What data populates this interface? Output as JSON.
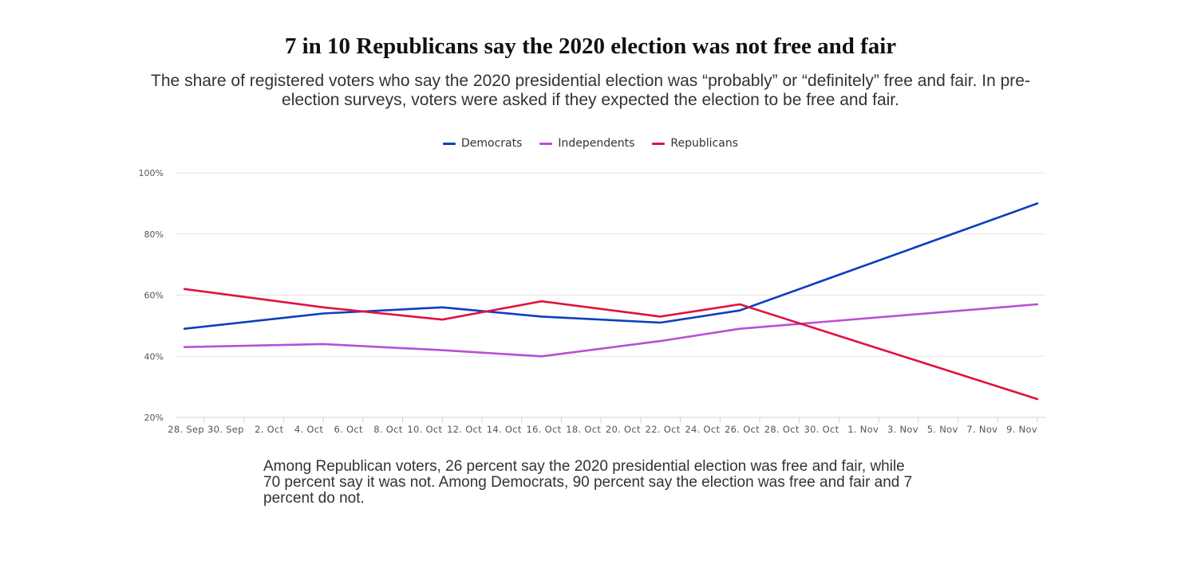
{
  "title": "7 in 10 Republicans say the 2020 election was not free and fair",
  "subtitle": "The share of registered voters who say the 2020 presidential election was “probably” or “definitely” free and fair. In pre-election surveys, voters were asked if they expected the election to be free and fair.",
  "caption": "Among Republican voters, 26 percent say the 2020 presidential election was free and fair, while 70 percent say it was not. Among Democrats, 90 percent say the election was free and fair and 7 percent do not.",
  "chart_data": {
    "type": "line",
    "title": "7 in 10 Republicans say the 2020 election was not free and fair",
    "xlabel": "",
    "ylabel": "",
    "grid": true,
    "legend_position": "top-center",
    "ylim": [
      20,
      100
    ],
    "y_ticks": [
      "20%",
      "40%",
      "60%",
      "80%",
      "100%"
    ],
    "y_tick_values": [
      20,
      40,
      60,
      80,
      100
    ],
    "x_ticks": [
      "28. Sep",
      "30. Sep",
      "2. Oct",
      "4. Oct",
      "6. Oct",
      "8. Oct",
      "10. Oct",
      "12. Oct",
      "14. Oct",
      "16. Oct",
      "18. Oct",
      "20. Oct",
      "22. Oct",
      "24. Oct",
      "26. Oct",
      "28. Oct",
      "30. Oct",
      "1. Nov",
      "3. Nov",
      "5. Nov",
      "7. Nov",
      "9. Nov"
    ],
    "x_tick_dates": [
      "2020-09-28",
      "2020-09-30",
      "2020-10-02",
      "2020-10-04",
      "2020-10-06",
      "2020-10-08",
      "2020-10-10",
      "2020-10-12",
      "2020-10-14",
      "2020-10-16",
      "2020-10-18",
      "2020-10-20",
      "2020-10-22",
      "2020-10-24",
      "2020-10-26",
      "2020-10-28",
      "2020-10-30",
      "2020-11-01",
      "2020-11-03",
      "2020-11-05",
      "2020-11-07",
      "2020-11-09"
    ],
    "series": [
      {
        "name": "Democrats",
        "color": "#0b3fbf",
        "points": [
          {
            "x": "2020-09-27",
            "y": 49
          },
          {
            "x": "2020-10-04",
            "y": 54
          },
          {
            "x": "2020-10-10",
            "y": 56
          },
          {
            "x": "2020-10-15",
            "y": 53
          },
          {
            "x": "2020-10-21",
            "y": 51
          },
          {
            "x": "2020-10-25",
            "y": 55
          },
          {
            "x": "2020-11-09",
            "y": 90
          }
        ]
      },
      {
        "name": "Independents",
        "color": "#b84fd6",
        "points": [
          {
            "x": "2020-09-27",
            "y": 43
          },
          {
            "x": "2020-10-04",
            "y": 44
          },
          {
            "x": "2020-10-10",
            "y": 42
          },
          {
            "x": "2020-10-15",
            "y": 40
          },
          {
            "x": "2020-10-21",
            "y": 45
          },
          {
            "x": "2020-10-25",
            "y": 49
          },
          {
            "x": "2020-11-09",
            "y": 57
          }
        ]
      },
      {
        "name": "Republicans",
        "color": "#e0123f",
        "points": [
          {
            "x": "2020-09-27",
            "y": 62
          },
          {
            "x": "2020-10-04",
            "y": 56
          },
          {
            "x": "2020-10-10",
            "y": 52
          },
          {
            "x": "2020-10-15",
            "y": 58
          },
          {
            "x": "2020-10-21",
            "y": 53
          },
          {
            "x": "2020-10-25",
            "y": 57
          },
          {
            "x": "2020-11-09",
            "y": 26
          }
        ]
      }
    ]
  }
}
